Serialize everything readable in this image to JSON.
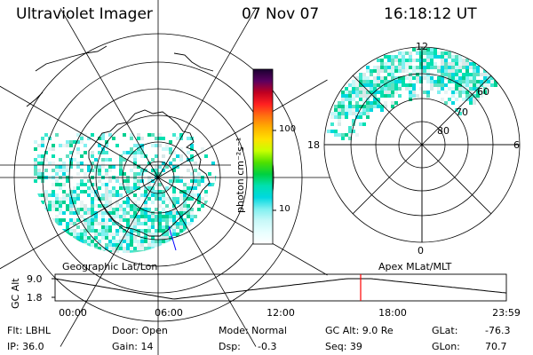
{
  "header": {
    "instrument": "Ultraviolet Imager",
    "date": "07 Nov 07",
    "time": "16:18:12 UT"
  },
  "left_map": {
    "caption": "Geographic Lat/Lon"
  },
  "right_map": {
    "caption": "Apex MLat/MLT",
    "mlt_labels": {
      "top": "12",
      "left": "18",
      "right": "6",
      "bottom": "0"
    },
    "lat_labels": [
      "60",
      "70",
      "80"
    ]
  },
  "colorbar": {
    "unit_label": "photon cm⁻²s⁻¹",
    "ticks": [
      "100",
      "10"
    ],
    "colors": [
      "#1a0030",
      "#5a0060",
      "#c00020",
      "#ff2020",
      "#ff7010",
      "#ffb000",
      "#ffe000",
      "#c8ff00",
      "#50e000",
      "#00d040",
      "#00e0b0",
      "#00d8e0",
      "#80f0f0",
      "#c8f8f8",
      "#e8ffff",
      "#ffffff"
    ]
  },
  "altitude_plot": {
    "ylabel": "GC Alt",
    "y_ticks": [
      "9.0",
      "1.8"
    ],
    "x_ticks": [
      "00:00",
      "06:00",
      "12:00",
      "18:00",
      "23:59"
    ],
    "marker_color": "#ff0000"
  },
  "info": {
    "flt": "Flt: LBHL",
    "door": "Door: Open",
    "mode": "Mode: Normal",
    "gc_alt": "GC Alt: 9.0 Re",
    "glat_label": "GLat:",
    "glat_value": "-76.3",
    "ip": "IP: 36.0",
    "gain": "Gain: 14",
    "dsp_label": "Dsp:",
    "dsp_value": "-0.3",
    "seq": "Seq: 39",
    "glon_label": "GLon:",
    "glon_value": "70.7"
  }
}
